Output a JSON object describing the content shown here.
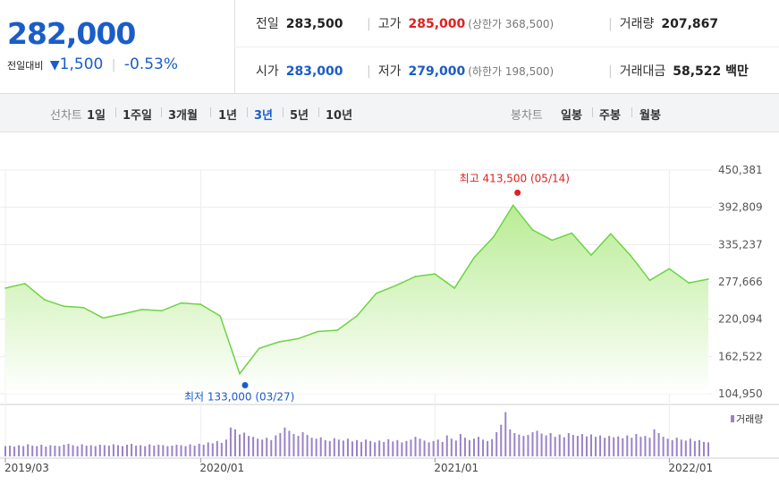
{
  "quote": {
    "price": "282,000",
    "change_label": "전일대비",
    "change_icon": "down-triangle-icon",
    "change_value": "1,500",
    "change_rate": "-0.53%",
    "prev_label": "전일",
    "prev_value": "283,500",
    "high_label": "고가",
    "high_value": "285,000",
    "upper_limit": "(상한가 368,500)",
    "volume_label": "거래량",
    "volume_value": "207,867",
    "open_label": "시가",
    "open_value": "283,000",
    "low_label": "저가",
    "low_value": "279,000",
    "lower_limit": "(하한가 198,500)",
    "amount_label": "거래대금",
    "amount_value": "58,522 백만"
  },
  "tabs": {
    "line_label": "선차트",
    "line_periods": [
      "1일",
      "1주일",
      "3개월",
      "1년",
      "3년",
      "5년",
      "10년"
    ],
    "active_period": "3년",
    "candle_label": "봉차트",
    "candle_periods": [
      "일봉",
      "주봉",
      "월봉"
    ]
  },
  "colors": {
    "line": "#6cd443",
    "fill_top": "#b9ec94",
    "max": "#e0201f",
    "min": "#1a5cc9",
    "volume": "#9a82c8"
  },
  "chart_data": {
    "type": "area",
    "x_labels": [
      "2019/03",
      "2020/01",
      "2021/01",
      "2022/01"
    ],
    "y_ticks": [
      "450,381",
      "392,809",
      "335,237",
      "277,666",
      "220,094",
      "162,522",
      "104,950"
    ],
    "ylim": [
      104950,
      450381
    ],
    "max_annotation": "최고 413,500 (05/14)",
    "min_annotation": "최저 133,000 (03/27)",
    "volume_legend": "거래량",
    "grid": true,
    "series": [
      {
        "x": [
          "2019-03",
          "2019-04",
          "2019-05",
          "2019-06",
          "2019-07",
          "2019-08",
          "2019-09",
          "2019-10",
          "2019-11",
          "2019-12",
          "2020-01",
          "2020-02",
          "2020-03",
          "2020-04",
          "2020-05",
          "2020-06",
          "2020-07",
          "2020-08",
          "2020-09",
          "2020-10",
          "2020-11",
          "2020-12",
          "2021-01",
          "2021-02",
          "2021-03",
          "2021-04",
          "2021-05",
          "2021-06",
          "2021-07",
          "2021-08",
          "2021-09",
          "2021-10",
          "2021-11",
          "2021-12",
          "2022-01",
          "2022-02",
          "2022-03"
        ],
        "values": [
          268000,
          275000,
          250000,
          240000,
          238000,
          222000,
          228000,
          235000,
          233000,
          245000,
          243000,
          225000,
          136000,
          175000,
          185000,
          190000,
          201000,
          203000,
          225000,
          260000,
          272000,
          286000,
          290000,
          268000,
          315000,
          347000,
          396000,
          358000,
          342000,
          353000,
          319000,
          352000,
          319000,
          280000,
          298000,
          276000,
          282000
        ]
      }
    ],
    "volume": [
      0.22,
      0.23,
      0.21,
      0.24,
      0.22,
      0.26,
      0.23,
      0.22,
      0.25,
      0.21,
      0.24,
      0.23,
      0.22,
      0.25,
      0.27,
      0.24,
      0.22,
      0.26,
      0.23,
      0.24,
      0.22,
      0.25,
      0.24,
      0.23,
      0.26,
      0.24,
      0.22,
      0.25,
      0.27,
      0.23,
      0.24,
      0.22,
      0.26,
      0.23,
      0.25,
      0.24,
      0.22,
      0.23,
      0.25,
      0.24,
      0.22,
      0.26,
      0.23,
      0.27,
      0.25,
      0.3,
      0.28,
      0.33,
      0.29,
      0.36,
      0.62,
      0.58,
      0.47,
      0.51,
      0.44,
      0.42,
      0.38,
      0.36,
      0.4,
      0.35,
      0.45,
      0.5,
      0.62,
      0.55,
      0.48,
      0.44,
      0.52,
      0.46,
      0.4,
      0.38,
      0.41,
      0.35,
      0.33,
      0.39,
      0.36,
      0.34,
      0.38,
      0.32,
      0.35,
      0.31,
      0.36,
      0.33,
      0.3,
      0.34,
      0.31,
      0.37,
      0.32,
      0.35,
      0.3,
      0.33,
      0.36,
      0.42,
      0.38,
      0.34,
      0.3,
      0.33,
      0.36,
      0.31,
      0.45,
      0.38,
      0.34,
      0.48,
      0.4,
      0.35,
      0.38,
      0.42,
      0.36,
      0.33,
      0.37,
      0.52,
      0.68,
      0.95,
      0.58,
      0.5,
      0.47,
      0.44,
      0.46,
      0.52,
      0.55,
      0.49,
      0.45,
      0.5,
      0.42,
      0.47,
      0.41,
      0.5,
      0.46,
      0.44,
      0.48,
      0.43,
      0.47,
      0.42,
      0.45,
      0.4,
      0.44,
      0.41,
      0.43,
      0.39,
      0.45,
      0.4,
      0.48,
      0.42,
      0.44,
      0.4,
      0.58,
      0.5,
      0.42,
      0.38,
      0.35,
      0.4,
      0.36,
      0.34,
      0.38,
      0.33,
      0.35,
      0.31,
      0.3
    ]
  }
}
